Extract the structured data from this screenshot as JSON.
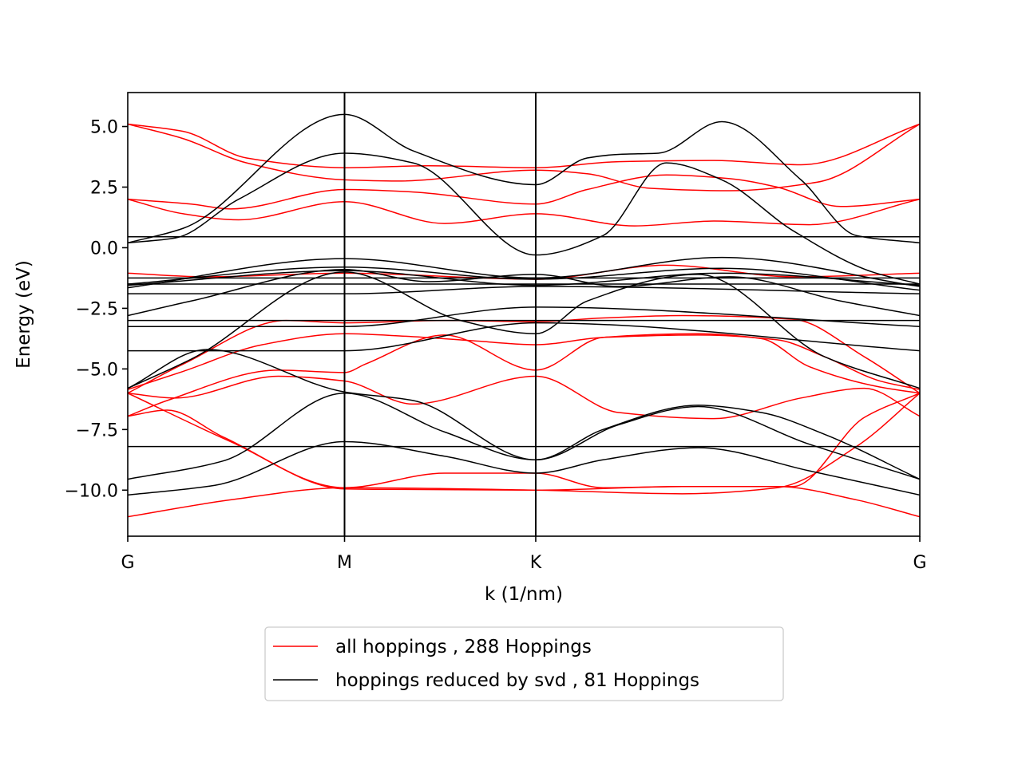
{
  "chart_data": {
    "type": "line",
    "title": "",
    "xlabel": "k (1/nm)",
    "ylabel": "Energy (eV)",
    "xlim": [
      0,
      1
    ],
    "ylim": [
      -11.9,
      6.4
    ],
    "x_ticks": [
      {
        "label": "G",
        "x": 0.0
      },
      {
        "label": "M",
        "x": 0.2737
      },
      {
        "label": "K",
        "x": 0.5151
      },
      {
        "label": "G",
        "x": 1.0
      }
    ],
    "vertical_lines_at": [
      0.2737,
      0.5151
    ],
    "y_ticks": [
      {
        "label": "5.0",
        "value": 5.0
      },
      {
        "label": "2.5",
        "value": 2.5
      },
      {
        "label": "0.0",
        "value": 0.0
      },
      {
        "label": "−2.5",
        "value": -2.5
      },
      {
        "label": "−5.0",
        "value": -5.0
      },
      {
        "label": "−7.5",
        "value": -7.5
      },
      {
        "label": "−10.0",
        "value": -10.0
      }
    ],
    "grid": false,
    "legend_position": "below plot, centered",
    "series": [
      {
        "name": "all hoppings , 288 Hoppings",
        "color": "#ff0000",
        "bands": [
          {
            "x": [
              0,
              0.07,
              0.15,
              0.2737,
              0.38,
              0.5151,
              0.62,
              0.74,
              0.85,
              1.0
            ],
            "y": [
              5.1,
              4.8,
              3.7,
              3.3,
              3.38,
              3.3,
              3.55,
              3.6,
              3.42,
              5.1
            ]
          },
          {
            "x": [
              0,
              0.07,
              0.15,
              0.2737,
              0.34,
              0.5151,
              0.58,
              0.66,
              0.76,
              0.87,
              1.0
            ],
            "y": [
              5.1,
              4.5,
              3.5,
              2.8,
              2.75,
              3.2,
              3.05,
              2.45,
              2.35,
              2.7,
              5.1
            ]
          },
          {
            "x": [
              0,
              0.08,
              0.13,
              0.2737,
              0.36,
              0.5151,
              0.58,
              0.68,
              0.76,
              0.82,
              0.9,
              1.0
            ],
            "y": [
              2.0,
              1.8,
              1.6,
              2.4,
              2.3,
              1.8,
              2.4,
              3.0,
              2.85,
              2.5,
              1.7,
              2.0
            ]
          },
          {
            "x": [
              0,
              0.07,
              0.14,
              0.2737,
              0.4,
              0.5151,
              0.64,
              0.74,
              0.86,
              1.0
            ],
            "y": [
              2.0,
              1.4,
              1.15,
              1.9,
              1.0,
              1.4,
              0.9,
              1.1,
              0.95,
              2.0
            ]
          },
          {
            "x": [
              0,
              0.1,
              0.2737,
              0.5151,
              0.68,
              0.84,
              1.0
            ],
            "y": [
              -1.05,
              -1.2,
              -1.05,
              -1.3,
              -0.72,
              -1.2,
              -1.05
            ]
          },
          {
            "x": [
              0,
              0.07,
              0.2,
              0.2737,
              0.4,
              0.5151,
              0.6,
              0.7,
              0.84,
              0.93,
              1.0
            ],
            "y": [
              -6.0,
              -4.8,
              -3.0,
              -3.1,
              -3.0,
              -3.05,
              -2.9,
              -2.8,
              -2.95,
              -4.5,
              -6.0
            ]
          },
          {
            "x": [
              0,
              0.07,
              0.17,
              0.2737,
              0.35,
              0.44,
              0.5151,
              0.6,
              0.72,
              0.82,
              0.88,
              0.95,
              1.0
            ],
            "y": [
              -5.85,
              -5.1,
              -4.0,
              -3.55,
              -3.65,
              -3.85,
              -4.0,
              -3.7,
              -3.6,
              -3.8,
              -4.5,
              -5.5,
              -5.85
            ]
          },
          {
            "x": [
              0,
              0.05,
              0.19,
              0.2737,
              0.3,
              0.4,
              0.5151,
              0.6,
              0.72,
              0.8,
              0.86,
              0.95,
              1.0
            ],
            "y": [
              -6.95,
              -6.3,
              -5.05,
              -5.15,
              -4.8,
              -3.6,
              -5.05,
              -3.7,
              -3.55,
              -3.75,
              -4.9,
              -5.75,
              -6.0
            ]
          },
          {
            "x": [
              0,
              0.06,
              0.19,
              0.2737,
              0.36,
              0.5151,
              0.62,
              0.74,
              0.85,
              0.93,
              1.0
            ],
            "y": [
              -6.0,
              -6.2,
              -5.3,
              -5.5,
              -6.45,
              -5.3,
              -6.8,
              -7.05,
              -6.2,
              -5.8,
              -6.95
            ]
          },
          {
            "x": [
              0,
              0.05,
              0.12,
              0.2737,
              0.4,
              0.5151,
              0.6,
              0.7,
              0.84,
              0.93,
              1.0
            ],
            "y": [
              -6.95,
              -6.7,
              -7.8,
              -9.9,
              -9.3,
              -9.3,
              -9.9,
              -9.85,
              -9.85,
              -7.0,
              -6.0
            ]
          },
          {
            "x": [
              0,
              0.13,
              0.2737,
              0.5151,
              0.7,
              0.82,
              0.92,
              1.0
            ],
            "y": [
              -11.1,
              -10.4,
              -9.9,
              -10.0,
              -10.15,
              -9.9,
              -8.2,
              -6.0
            ]
          },
          {
            "x": [
              0,
              0.13,
              0.2737,
              0.5151,
              0.7,
              0.82,
              0.92,
              1.0
            ],
            "y": [
              -6.0,
              -8.0,
              -9.95,
              -10.0,
              -9.85,
              -9.85,
              -10.4,
              -11.1
            ]
          }
        ]
      },
      {
        "name": "hoppings reduced by svd , 81 Hoppings",
        "color": "#000000",
        "bands": [
          {
            "x": [
              0,
              0.07,
              0.2737,
              0.36,
              0.5151,
              0.58,
              0.62,
              0.67,
              0.75,
              0.85,
              0.92,
              1.0
            ],
            "y": [
              0.2,
              0.8,
              5.5,
              4.0,
              2.6,
              3.7,
              3.85,
              3.9,
              5.2,
              2.8,
              0.5,
              0.2
            ]
          },
          {
            "x": [
              0,
              0.06,
              0.14,
              0.2737,
              0.36,
              0.5151,
              0.6,
              0.68,
              0.75,
              0.84,
              0.94,
              1.0
            ],
            "y": [
              0.2,
              0.4,
              2.0,
              3.9,
              3.5,
              -0.3,
              0.5,
              3.5,
              2.8,
              0.7,
              -1.0,
              -1.5
            ]
          },
          {
            "x": [
              0,
              1.0
            ],
            "y": [
              0.45,
              0.45
            ]
          },
          {
            "x": [
              0,
              0.2737,
              0.5151,
              0.75,
              1.0
            ],
            "y": [
              -1.65,
              -0.45,
              -1.25,
              -0.4,
              -1.6
            ]
          },
          {
            "x": [
              0,
              0.2737,
              0.5151,
              0.75,
              1.0
            ],
            "y": [
              -1.5,
              -0.8,
              -1.3,
              -0.85,
              -1.75
            ]
          },
          {
            "x": [
              0,
              0.2737,
              0.5151,
              0.75,
              1.0
            ],
            "y": [
              -1.55,
              -0.95,
              -1.55,
              -1.05,
              -1.55
            ]
          },
          {
            "x": [
              0,
              1.0
            ],
            "y": [
              -1.25,
              -1.25
            ]
          },
          {
            "x": [
              0,
              1.0
            ],
            "y": [
              -1.5,
              -1.5
            ]
          },
          {
            "x": [
              0,
              0.2737,
              0.5151,
              1.0
            ],
            "y": [
              -1.9,
              -1.9,
              -1.6,
              -1.9
            ]
          },
          {
            "x": [
              0,
              0.08,
              0.2737,
              0.38,
              0.5151,
              0.62,
              0.76,
              0.9,
              1.0
            ],
            "y": [
              -2.8,
              -2.2,
              -0.9,
              -1.4,
              -1.1,
              -1.6,
              -1.2,
              -2.2,
              -2.8
            ]
          },
          {
            "x": [
              0,
              0.08,
              0.2737,
              0.42,
              0.5151,
              0.58,
              0.72,
              0.88,
              1.0
            ],
            "y": [
              -5.8,
              -4.6,
              -1.0,
              -3.0,
              -3.55,
              -2.2,
              -1.1,
              -4.5,
              -5.8
            ]
          },
          {
            "x": [
              0,
              1.0
            ],
            "y": [
              -3.0,
              -3.0
            ]
          },
          {
            "x": [
              0,
              0.2737,
              0.5151,
              1.0
            ],
            "y": [
              -3.25,
              -3.25,
              -2.45,
              -3.25
            ]
          },
          {
            "x": [
              0,
              0.2737,
              0.5151,
              1.0
            ],
            "y": [
              -4.25,
              -4.25,
              -3.1,
              -4.25
            ]
          },
          {
            "x": [
              0,
              0.1,
              0.2737,
              0.36,
              0.5151,
              0.6,
              0.72,
              0.8,
              0.88,
              1.0
            ],
            "y": [
              -5.8,
              -4.2,
              -5.95,
              -6.3,
              -8.75,
              -7.5,
              -6.5,
              -6.8,
              -7.7,
              -9.55
            ]
          },
          {
            "x": [
              0,
              0.12,
              0.2737,
              0.4,
              0.5151,
              0.62,
              0.72,
              0.86,
              1.0
            ],
            "y": [
              -9.55,
              -8.8,
              -6.0,
              -7.6,
              -8.75,
              -7.3,
              -6.55,
              -8.1,
              -9.55
            ]
          },
          {
            "x": [
              0,
              0.11,
              0.2737,
              0.4,
              0.5151,
              0.6,
              0.72,
              0.86,
              1.0
            ],
            "y": [
              -10.2,
              -9.8,
              -8.0,
              -8.6,
              -9.3,
              -8.75,
              -8.25,
              -9.2,
              -10.2
            ]
          },
          {
            "x": [
              0,
              1.0
            ],
            "y": [
              -8.2,
              -8.2
            ]
          }
        ]
      }
    ]
  }
}
